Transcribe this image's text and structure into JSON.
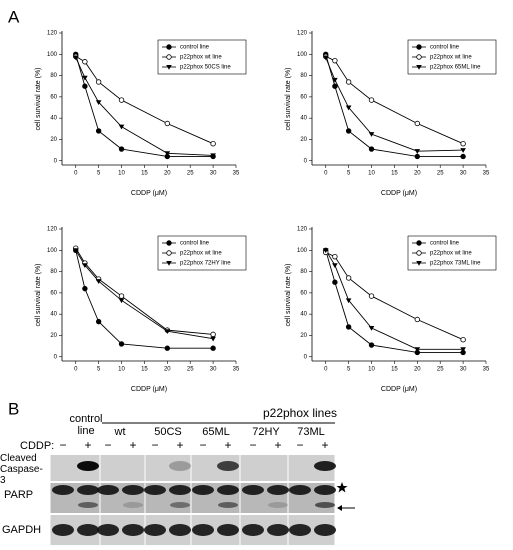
{
  "panel_a_label": "A",
  "chart_data": [
    {
      "type": "line",
      "x": [
        0,
        2,
        5,
        10,
        20,
        30
      ],
      "xlim": [
        -3,
        35
      ],
      "xticks": [
        0,
        5,
        10,
        15,
        20,
        25,
        30,
        35
      ],
      "ylim": [
        -4,
        120
      ],
      "yticks": [
        0,
        20,
        40,
        60,
        80,
        100,
        120
      ],
      "xlabel": "CDDP (μM)",
      "ylabel": "cell survival rate (%)",
      "legend": "upper right",
      "series": [
        {
          "name": "control line",
          "color": "#000000",
          "marker": "circle-filled",
          "values": [
            100,
            70,
            28,
            11,
            4,
            4
          ]
        },
        {
          "name": "p22phox wt line",
          "color": "#000000",
          "marker": "circle-open",
          "values": [
            98,
            93,
            74,
            57,
            35,
            16
          ]
        },
        {
          "name": "p22phox 50CS line",
          "color": "#000000",
          "marker": "triangle-down",
          "values": [
            97,
            78,
            55,
            32,
            7,
            5
          ]
        }
      ]
    },
    {
      "type": "line",
      "x": [
        0,
        2,
        5,
        10,
        20,
        30
      ],
      "xlim": [
        -3,
        35
      ],
      "xticks": [
        0,
        5,
        10,
        15,
        20,
        25,
        30,
        35
      ],
      "ylim": [
        -4,
        120
      ],
      "yticks": [
        0,
        20,
        40,
        60,
        80,
        100,
        120
      ],
      "xlabel": "CDDP (μM)",
      "ylabel": "cell survival rate (%)",
      "legend": "upper right",
      "series": [
        {
          "name": "control line",
          "color": "#000000",
          "marker": "circle-filled",
          "values": [
            100,
            70,
            28,
            11,
            4,
            4
          ]
        },
        {
          "name": "p22phox wt line",
          "color": "#000000",
          "marker": "circle-open",
          "values": [
            98,
            94,
            74,
            57,
            35,
            16
          ]
        },
        {
          "name": "p22phox 65ML line",
          "color": "#000000",
          "marker": "triangle-down",
          "values": [
            97,
            76,
            50,
            25,
            9,
            10
          ]
        }
      ]
    },
    {
      "type": "line",
      "x": [
        0,
        2,
        5,
        10,
        20,
        30
      ],
      "xlim": [
        -3,
        35
      ],
      "xticks": [
        0,
        5,
        10,
        15,
        20,
        25,
        30,
        35
      ],
      "ylim": [
        -4,
        120
      ],
      "yticks": [
        0,
        20,
        40,
        60,
        80,
        100,
        120
      ],
      "xlabel": "CDDP (μM)",
      "ylabel": "cell survival rate (%)",
      "legend": "upper right",
      "series": [
        {
          "name": "control line",
          "color": "#000000",
          "marker": "circle-filled",
          "values": [
            100,
            64,
            33,
            12,
            8,
            8
          ]
        },
        {
          "name": "p22phox wt line",
          "color": "#000000",
          "marker": "circle-open",
          "values": [
            102,
            88,
            73,
            57,
            25,
            21
          ]
        },
        {
          "name": "p22phox 72HY line",
          "color": "#000000",
          "marker": "triangle-down",
          "values": [
            100,
            86,
            71,
            53,
            24,
            17
          ]
        }
      ]
    },
    {
      "type": "line",
      "x": [
        0,
        2,
        5,
        10,
        20,
        30
      ],
      "xlim": [
        -3,
        35
      ],
      "xticks": [
        0,
        5,
        10,
        15,
        20,
        25,
        30,
        35
      ],
      "ylim": [
        -4,
        120
      ],
      "yticks": [
        0,
        20,
        40,
        60,
        80,
        100,
        120
      ],
      "xlabel": "CDDP (μM)",
      "ylabel": "cell survival rate (%)",
      "legend": "upper right",
      "series": [
        {
          "name": "control line",
          "color": "#000000",
          "marker": "circle-filled",
          "values": [
            100,
            70,
            28,
            11,
            4,
            4
          ]
        },
        {
          "name": "p22phox wt line",
          "color": "#000000",
          "marker": "circle-open",
          "values": [
            98,
            94,
            74,
            57,
            35,
            16
          ]
        },
        {
          "name": "p22phox 73ML line",
          "color": "#000000",
          "marker": "triangle-down",
          "values": [
            100,
            86,
            53,
            27,
            7,
            7
          ]
        }
      ]
    }
  ],
  "blot": {
    "label": "B",
    "group_title": "p22phox lines",
    "lanes": [
      "control line",
      "wt",
      "50CS",
      "65ML",
      "72HY",
      "73ML"
    ],
    "treatment_label": "CDDP:",
    "treatment_signs": [
      "−",
      "+"
    ],
    "rows": [
      "Cleaved Caspase-3",
      "PARP",
      "GAPDH"
    ]
  }
}
